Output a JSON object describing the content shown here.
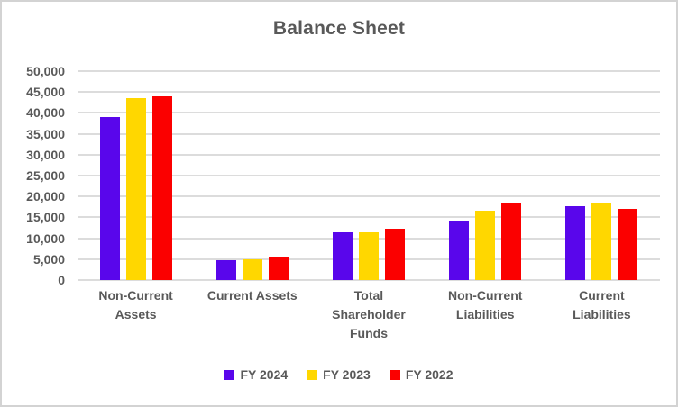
{
  "colors": {
    "text": "#595959",
    "grid": "#DCDCDC",
    "frame_border": "#D3D3D3",
    "background": "#FFFFFF"
  },
  "chart_data": {
    "type": "bar",
    "title": "Balance Sheet",
    "categories": [
      "Non-Current Assets",
      "Current Assets",
      "Total Shareholder Funds",
      "Non-Current Liabilities",
      "Current Liabilities"
    ],
    "category_label_lines": [
      [
        "Non-Current",
        "Assets"
      ],
      [
        "Current Assets"
      ],
      [
        "Total",
        "Shareholder",
        "Funds"
      ],
      [
        "Non-Current",
        "Liabilities"
      ],
      [
        "Current",
        "Liabilities"
      ]
    ],
    "series": [
      {
        "name": "FY 2024",
        "color": "#5906EB",
        "values": [
          39000,
          4700,
          11400,
          14200,
          17700
        ]
      },
      {
        "name": "FY 2023",
        "color": "#FFD700",
        "values": [
          43500,
          4900,
          11400,
          16700,
          18400
        ]
      },
      {
        "name": "FY 2022",
        "color": "#FB0000",
        "values": [
          44000,
          5600,
          12300,
          18300,
          17000
        ]
      }
    ],
    "xlabel": "",
    "ylabel": "",
    "ylim": [
      0,
      50000
    ],
    "yticks": [
      {
        "value": 0,
        "label": "0"
      },
      {
        "value": 5000,
        "label": "5,000"
      },
      {
        "value": 10000,
        "label": "10,000"
      },
      {
        "value": 15000,
        "label": "15,000"
      },
      {
        "value": 20000,
        "label": "20,000"
      },
      {
        "value": 25000,
        "label": "25,000"
      },
      {
        "value": 30000,
        "label": "30,000"
      },
      {
        "value": 35000,
        "label": "35,000"
      },
      {
        "value": 40000,
        "label": "40,000"
      },
      {
        "value": 45000,
        "label": "45,000"
      },
      {
        "value": 50000,
        "label": "50,000"
      }
    ],
    "grid": "horizontal",
    "legend_position": "bottom"
  }
}
